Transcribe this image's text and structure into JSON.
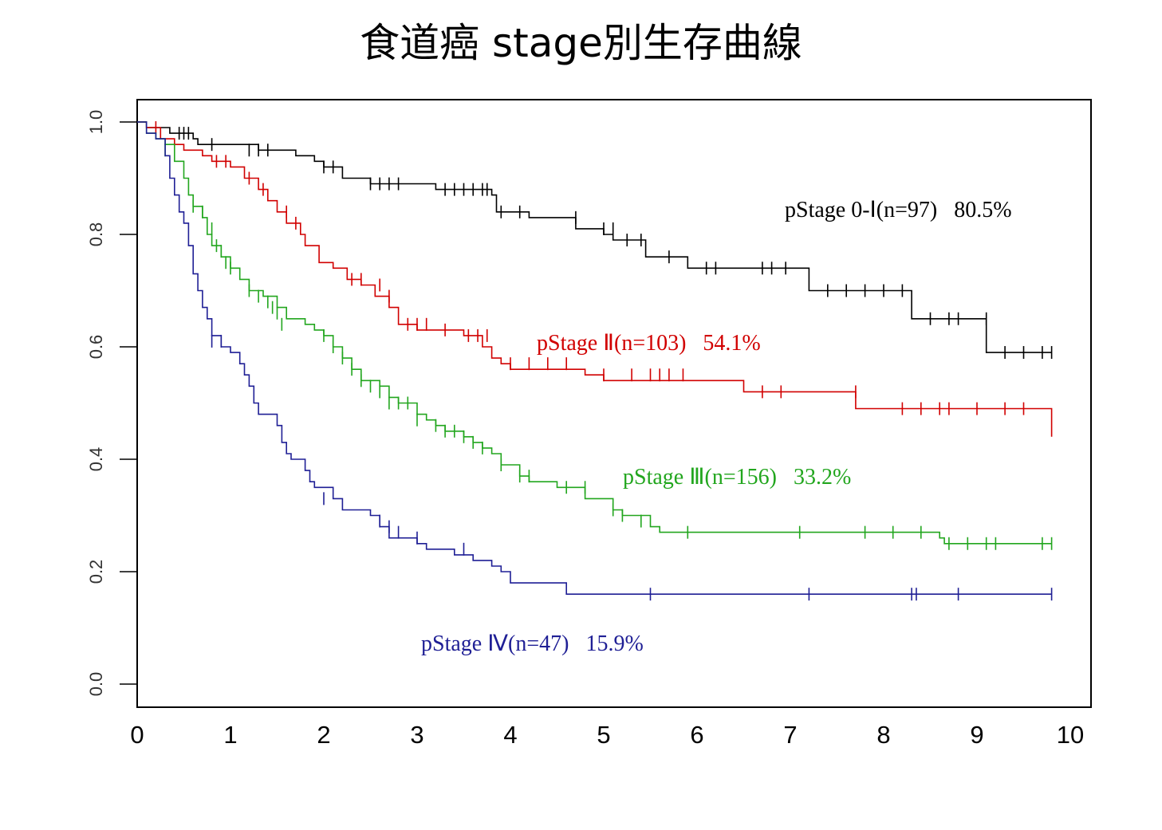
{
  "chart_data": {
    "type": "line",
    "title": "食道癌 stage別生存曲線",
    "xlim": [
      0,
      10
    ],
    "ylim": [
      0,
      1.0
    ],
    "x_ticks": [
      "0",
      "1",
      "2",
      "3",
      "4",
      "5",
      "6",
      "7",
      "8",
      "9",
      "10"
    ],
    "y_ticks": [
      "0.0",
      "0.2",
      "0.4",
      "0.6",
      "0.8",
      "1.0"
    ],
    "grid": false,
    "series": [
      {
        "name": "pStage 0-Ⅰ(n=97)",
        "label": "pStage 0-Ⅰ(n=97)   80.5%",
        "color": "#000000",
        "steps": [
          [
            0,
            1.0
          ],
          [
            0.1,
            0.99
          ],
          [
            0.35,
            0.98
          ],
          [
            0.6,
            0.97
          ],
          [
            0.65,
            0.96
          ],
          [
            1.3,
            0.95
          ],
          [
            1.7,
            0.94
          ],
          [
            1.9,
            0.93
          ],
          [
            2.0,
            0.92
          ],
          [
            2.2,
            0.9
          ],
          [
            2.5,
            0.89
          ],
          [
            3.2,
            0.88
          ],
          [
            3.8,
            0.87
          ],
          [
            3.85,
            0.84
          ],
          [
            4.2,
            0.83
          ],
          [
            4.7,
            0.81
          ],
          [
            5.0,
            0.8
          ],
          [
            5.1,
            0.79
          ],
          [
            5.45,
            0.76
          ],
          [
            5.9,
            0.74
          ],
          [
            7.2,
            0.7
          ],
          [
            8.3,
            0.65
          ],
          [
            9.1,
            0.59
          ],
          [
            9.8,
            0.59
          ]
        ],
        "censors": [
          [
            0.45,
            0.98
          ],
          [
            0.5,
            0.98
          ],
          [
            0.55,
            0.98
          ],
          [
            0.8,
            0.96
          ],
          [
            1.2,
            0.95
          ],
          [
            1.3,
            0.95
          ],
          [
            1.4,
            0.95
          ],
          [
            2.0,
            0.92
          ],
          [
            2.1,
            0.92
          ],
          [
            2.5,
            0.89
          ],
          [
            2.6,
            0.89
          ],
          [
            2.7,
            0.89
          ],
          [
            2.8,
            0.89
          ],
          [
            3.3,
            0.88
          ],
          [
            3.4,
            0.88
          ],
          [
            3.5,
            0.88
          ],
          [
            3.6,
            0.88
          ],
          [
            3.7,
            0.88
          ],
          [
            3.75,
            0.88
          ],
          [
            3.9,
            0.84
          ],
          [
            4.1,
            0.84
          ],
          [
            4.7,
            0.83
          ],
          [
            5.0,
            0.81
          ],
          [
            5.1,
            0.81
          ],
          [
            5.25,
            0.79
          ],
          [
            5.4,
            0.79
          ],
          [
            5.7,
            0.76
          ],
          [
            6.1,
            0.74
          ],
          [
            6.2,
            0.74
          ],
          [
            6.7,
            0.74
          ],
          [
            6.8,
            0.74
          ],
          [
            6.95,
            0.74
          ],
          [
            7.4,
            0.7
          ],
          [
            7.6,
            0.7
          ],
          [
            7.8,
            0.7
          ],
          [
            8.0,
            0.7
          ],
          [
            8.2,
            0.7
          ],
          [
            8.5,
            0.65
          ],
          [
            8.7,
            0.65
          ],
          [
            8.8,
            0.65
          ],
          [
            9.1,
            0.65
          ],
          [
            9.3,
            0.59
          ],
          [
            9.5,
            0.59
          ],
          [
            9.7,
            0.59
          ],
          [
            9.8,
            0.59
          ]
        ]
      },
      {
        "name": "pStage Ⅱ(n=103)",
        "label": "pStage Ⅱ(n=103)   54.1%",
        "color": "#d10000",
        "steps": [
          [
            0,
            1.0
          ],
          [
            0.1,
            0.99
          ],
          [
            0.25,
            0.97
          ],
          [
            0.4,
            0.96
          ],
          [
            0.5,
            0.95
          ],
          [
            0.7,
            0.94
          ],
          [
            0.8,
            0.93
          ],
          [
            1.0,
            0.92
          ],
          [
            1.15,
            0.9
          ],
          [
            1.3,
            0.88
          ],
          [
            1.4,
            0.86
          ],
          [
            1.5,
            0.84
          ],
          [
            1.6,
            0.82
          ],
          [
            1.75,
            0.8
          ],
          [
            1.8,
            0.78
          ],
          [
            1.95,
            0.75
          ],
          [
            2.1,
            0.74
          ],
          [
            2.25,
            0.72
          ],
          [
            2.4,
            0.71
          ],
          [
            2.55,
            0.69
          ],
          [
            2.7,
            0.67
          ],
          [
            2.8,
            0.64
          ],
          [
            3.0,
            0.63
          ],
          [
            3.5,
            0.62
          ],
          [
            3.7,
            0.6
          ],
          [
            3.8,
            0.58
          ],
          [
            3.9,
            0.57
          ],
          [
            4.0,
            0.56
          ],
          [
            4.8,
            0.55
          ],
          [
            5.0,
            0.54
          ],
          [
            6.5,
            0.52
          ],
          [
            7.7,
            0.49
          ],
          [
            9.8,
            0.49
          ],
          [
            9.8,
            0.44
          ]
        ],
        "censors": [
          [
            0.2,
            0.99
          ],
          [
            0.85,
            0.93
          ],
          [
            0.95,
            0.93
          ],
          [
            1.2,
            0.9
          ],
          [
            1.35,
            0.88
          ],
          [
            1.6,
            0.84
          ],
          [
            1.7,
            0.82
          ],
          [
            2.3,
            0.72
          ],
          [
            2.4,
            0.72
          ],
          [
            2.6,
            0.71
          ],
          [
            2.7,
            0.69
          ],
          [
            2.9,
            0.64
          ],
          [
            3.0,
            0.64
          ],
          [
            3.1,
            0.64
          ],
          [
            3.3,
            0.63
          ],
          [
            3.55,
            0.62
          ],
          [
            3.65,
            0.62
          ],
          [
            3.75,
            0.62
          ],
          [
            4.0,
            0.57
          ],
          [
            4.2,
            0.57
          ],
          [
            4.4,
            0.57
          ],
          [
            4.6,
            0.57
          ],
          [
            5.0,
            0.55
          ],
          [
            5.3,
            0.55
          ],
          [
            5.5,
            0.55
          ],
          [
            5.6,
            0.55
          ],
          [
            5.7,
            0.55
          ],
          [
            5.85,
            0.55
          ],
          [
            6.7,
            0.52
          ],
          [
            6.9,
            0.52
          ],
          [
            7.7,
            0.52
          ],
          [
            8.2,
            0.49
          ],
          [
            8.4,
            0.49
          ],
          [
            8.6,
            0.49
          ],
          [
            8.7,
            0.49
          ],
          [
            9.0,
            0.49
          ],
          [
            9.3,
            0.49
          ],
          [
            9.5,
            0.49
          ]
        ]
      },
      {
        "name": "pStage Ⅲ(n=156)",
        "label": "pStage Ⅲ(n=156)   33.2%",
        "color": "#22a61e",
        "steps": [
          [
            0,
            1.0
          ],
          [
            0.1,
            0.98
          ],
          [
            0.2,
            0.97
          ],
          [
            0.3,
            0.96
          ],
          [
            0.4,
            0.93
          ],
          [
            0.5,
            0.9
          ],
          [
            0.55,
            0.87
          ],
          [
            0.6,
            0.85
          ],
          [
            0.7,
            0.83
          ],
          [
            0.75,
            0.8
          ],
          [
            0.8,
            0.78
          ],
          [
            0.9,
            0.76
          ],
          [
            1.0,
            0.74
          ],
          [
            1.1,
            0.72
          ],
          [
            1.2,
            0.7
          ],
          [
            1.35,
            0.69
          ],
          [
            1.5,
            0.67
          ],
          [
            1.6,
            0.65
          ],
          [
            1.8,
            0.64
          ],
          [
            1.9,
            0.63
          ],
          [
            2.0,
            0.62
          ],
          [
            2.1,
            0.6
          ],
          [
            2.2,
            0.58
          ],
          [
            2.3,
            0.56
          ],
          [
            2.4,
            0.54
          ],
          [
            2.6,
            0.53
          ],
          [
            2.7,
            0.51
          ],
          [
            2.8,
            0.5
          ],
          [
            3.0,
            0.48
          ],
          [
            3.1,
            0.47
          ],
          [
            3.2,
            0.46
          ],
          [
            3.3,
            0.45
          ],
          [
            3.5,
            0.44
          ],
          [
            3.6,
            0.43
          ],
          [
            3.7,
            0.42
          ],
          [
            3.8,
            0.41
          ],
          [
            3.9,
            0.39
          ],
          [
            4.1,
            0.37
          ],
          [
            4.2,
            0.36
          ],
          [
            4.5,
            0.35
          ],
          [
            4.8,
            0.33
          ],
          [
            5.1,
            0.31
          ],
          [
            5.2,
            0.3
          ],
          [
            5.5,
            0.28
          ],
          [
            5.6,
            0.27
          ],
          [
            8.6,
            0.26
          ],
          [
            8.65,
            0.25
          ],
          [
            9.8,
            0.25
          ]
        ],
        "censors": [
          [
            0.3,
            0.95
          ],
          [
            0.6,
            0.85
          ],
          [
            0.7,
            0.84
          ],
          [
            0.8,
            0.81
          ],
          [
            0.85,
            0.78
          ],
          [
            0.9,
            0.77
          ],
          [
            0.95,
            0.75
          ],
          [
            1.0,
            0.74
          ],
          [
            1.2,
            0.7
          ],
          [
            1.3,
            0.69
          ],
          [
            1.4,
            0.68
          ],
          [
            1.45,
            0.67
          ],
          [
            1.5,
            0.66
          ],
          [
            1.55,
            0.64
          ],
          [
            2.0,
            0.62
          ],
          [
            2.1,
            0.6
          ],
          [
            2.2,
            0.58
          ],
          [
            2.3,
            0.56
          ],
          [
            2.4,
            0.54
          ],
          [
            2.5,
            0.53
          ],
          [
            2.6,
            0.52
          ],
          [
            2.7,
            0.5
          ],
          [
            2.8,
            0.5
          ],
          [
            2.9,
            0.5
          ],
          [
            3.0,
            0.47
          ],
          [
            3.2,
            0.46
          ],
          [
            3.3,
            0.45
          ],
          [
            3.4,
            0.45
          ],
          [
            3.5,
            0.44
          ],
          [
            3.6,
            0.43
          ],
          [
            3.7,
            0.42
          ],
          [
            3.9,
            0.39
          ],
          [
            4.1,
            0.37
          ],
          [
            4.2,
            0.37
          ],
          [
            4.6,
            0.35
          ],
          [
            4.8,
            0.35
          ],
          [
            5.1,
            0.31
          ],
          [
            5.2,
            0.3
          ],
          [
            5.4,
            0.29
          ],
          [
            5.9,
            0.27
          ],
          [
            7.1,
            0.27
          ],
          [
            7.8,
            0.27
          ],
          [
            8.1,
            0.27
          ],
          [
            8.4,
            0.27
          ],
          [
            8.7,
            0.25
          ],
          [
            8.9,
            0.25
          ],
          [
            9.1,
            0.25
          ],
          [
            9.2,
            0.25
          ],
          [
            9.7,
            0.25
          ],
          [
            9.8,
            0.25
          ]
        ]
      },
      {
        "name": "pStage Ⅳ(n=47)",
        "label": "pStage Ⅳ(n=47)   15.9%",
        "color": "#1f1f95",
        "steps": [
          [
            0,
            1.0
          ],
          [
            0.1,
            0.98
          ],
          [
            0.2,
            0.97
          ],
          [
            0.3,
            0.94
          ],
          [
            0.35,
            0.9
          ],
          [
            0.4,
            0.87
          ],
          [
            0.45,
            0.84
          ],
          [
            0.5,
            0.82
          ],
          [
            0.55,
            0.78
          ],
          [
            0.6,
            0.73
          ],
          [
            0.65,
            0.7
          ],
          [
            0.7,
            0.67
          ],
          [
            0.75,
            0.65
          ],
          [
            0.8,
            0.62
          ],
          [
            0.9,
            0.6
          ],
          [
            1.0,
            0.59
          ],
          [
            1.1,
            0.57
          ],
          [
            1.15,
            0.55
          ],
          [
            1.2,
            0.53
          ],
          [
            1.25,
            0.5
          ],
          [
            1.3,
            0.48
          ],
          [
            1.5,
            0.46
          ],
          [
            1.55,
            0.43
          ],
          [
            1.6,
            0.41
          ],
          [
            1.65,
            0.4
          ],
          [
            1.8,
            0.38
          ],
          [
            1.85,
            0.36
          ],
          [
            1.9,
            0.35
          ],
          [
            2.1,
            0.33
          ],
          [
            2.2,
            0.31
          ],
          [
            2.5,
            0.3
          ],
          [
            2.6,
            0.28
          ],
          [
            2.7,
            0.26
          ],
          [
            3.0,
            0.25
          ],
          [
            3.1,
            0.24
          ],
          [
            3.4,
            0.23
          ],
          [
            3.6,
            0.22
          ],
          [
            3.8,
            0.21
          ],
          [
            3.9,
            0.2
          ],
          [
            4.0,
            0.18
          ],
          [
            4.6,
            0.16
          ],
          [
            9.8,
            0.16
          ]
        ],
        "censors": [
          [
            0.8,
            0.61
          ],
          [
            0.9,
            0.61
          ],
          [
            2.0,
            0.33
          ],
          [
            2.6,
            0.29
          ],
          [
            2.7,
            0.28
          ],
          [
            2.8,
            0.27
          ],
          [
            3.0,
            0.26
          ],
          [
            3.5,
            0.24
          ],
          [
            5.5,
            0.16
          ],
          [
            7.2,
            0.16
          ],
          [
            8.3,
            0.16
          ],
          [
            8.35,
            0.16
          ],
          [
            8.8,
            0.16
          ],
          [
            9.8,
            0.16
          ]
        ]
      }
    ]
  }
}
